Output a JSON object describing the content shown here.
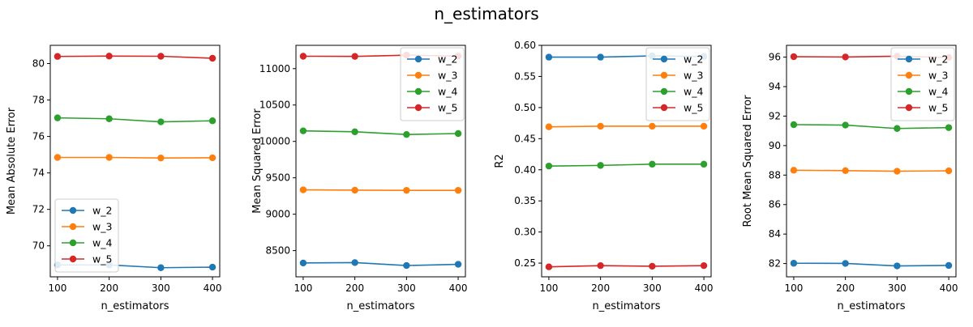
{
  "figure": {
    "suptitle": "n_estimators"
  },
  "chart_data": [
    {
      "type": "line",
      "xlabel": "n_estimators",
      "ylabel": "Mean Absolute Error",
      "x": [
        100,
        200,
        300,
        400
      ],
      "xlim": [
        86,
        414
      ],
      "ylim": [
        68.3,
        81.0
      ],
      "xticks": [
        100,
        200,
        300,
        400
      ],
      "yticks": [
        70,
        72,
        74,
        76,
        78,
        80
      ],
      "legend": "lower-left",
      "series": [
        {
          "name": "w_2",
          "color": "#1f77b4",
          "values": [
            68.95,
            68.95,
            68.8,
            68.83
          ]
        },
        {
          "name": "w_3",
          "color": "#ff7f0e",
          "values": [
            74.85,
            74.85,
            74.82,
            74.83
          ]
        },
        {
          "name": "w_4",
          "color": "#2ca02c",
          "values": [
            77.02,
            76.97,
            76.8,
            76.86
          ]
        },
        {
          "name": "w_5",
          "color": "#d62728",
          "values": [
            80.39,
            80.41,
            80.4,
            80.29
          ]
        }
      ]
    },
    {
      "type": "line",
      "xlabel": "n_estimators",
      "ylabel": "Mean Squared Error",
      "x": [
        100,
        200,
        300,
        400
      ],
      "xlim": [
        86,
        414
      ],
      "ylim": [
        8140,
        11320
      ],
      "xticks": [
        100,
        200,
        300,
        400
      ],
      "yticks": [
        8500,
        9000,
        9500,
        10000,
        10500,
        11000
      ],
      "legend": "upper-right",
      "series": [
        {
          "name": "w_2",
          "color": "#1f77b4",
          "values": [
            8330,
            8335,
            8295,
            8312
          ]
        },
        {
          "name": "w_3",
          "color": "#ff7f0e",
          "values": [
            9335,
            9330,
            9328,
            9328
          ]
        },
        {
          "name": "w_4",
          "color": "#2ca02c",
          "values": [
            10145,
            10132,
            10095,
            10108
          ]
        },
        {
          "name": "w_5",
          "color": "#d62728",
          "values": [
            11170,
            11168,
            11185,
            11172
          ]
        }
      ]
    },
    {
      "type": "line",
      "xlabel": "n_estimators",
      "ylabel": "R2",
      "x": [
        100,
        200,
        300,
        400
      ],
      "xlim": [
        86,
        414
      ],
      "ylim": [
        0.228,
        0.6
      ],
      "xticks": [
        100,
        200,
        300,
        400
      ],
      "yticks": [
        0.25,
        0.3,
        0.35,
        0.4,
        0.45,
        0.5,
        0.55,
        0.6
      ],
      "ytick_labels": [
        "0.25",
        "0.30",
        "0.35",
        "0.40",
        "0.45",
        "0.50",
        "0.55",
        "0.60"
      ],
      "legend": "upper-right",
      "series": [
        {
          "name": "w_2",
          "color": "#1f77b4",
          "values": [
            0.581,
            0.581,
            0.583,
            0.582
          ]
        },
        {
          "name": "w_3",
          "color": "#ff7f0e",
          "values": [
            0.469,
            0.47,
            0.47,
            0.47
          ]
        },
        {
          "name": "w_4",
          "color": "#2ca02c",
          "values": [
            0.406,
            0.407,
            0.409,
            0.409
          ]
        },
        {
          "name": "w_5",
          "color": "#d62728",
          "values": [
            0.244,
            0.246,
            0.245,
            0.246
          ]
        }
      ]
    },
    {
      "type": "line",
      "xlabel": "n_estimators",
      "ylabel": "Root Mean Squared Error",
      "x": [
        100,
        200,
        300,
        400
      ],
      "xlim": [
        86,
        414
      ],
      "ylim": [
        81.1,
        96.8
      ],
      "xticks": [
        100,
        200,
        300,
        400
      ],
      "yticks": [
        82,
        84,
        86,
        88,
        90,
        92,
        94,
        96
      ],
      "legend": "upper-right",
      "series": [
        {
          "name": "w_2",
          "color": "#1f77b4",
          "values": [
            82.02,
            82.01,
            81.84,
            81.87
          ]
        },
        {
          "name": "w_3",
          "color": "#ff7f0e",
          "values": [
            88.33,
            88.3,
            88.26,
            88.29
          ]
        },
        {
          "name": "w_4",
          "color": "#2ca02c",
          "values": [
            91.42,
            91.39,
            91.16,
            91.22
          ]
        },
        {
          "name": "w_5",
          "color": "#d62728",
          "values": [
            96.03,
            96.01,
            96.06,
            95.98
          ]
        }
      ]
    }
  ]
}
